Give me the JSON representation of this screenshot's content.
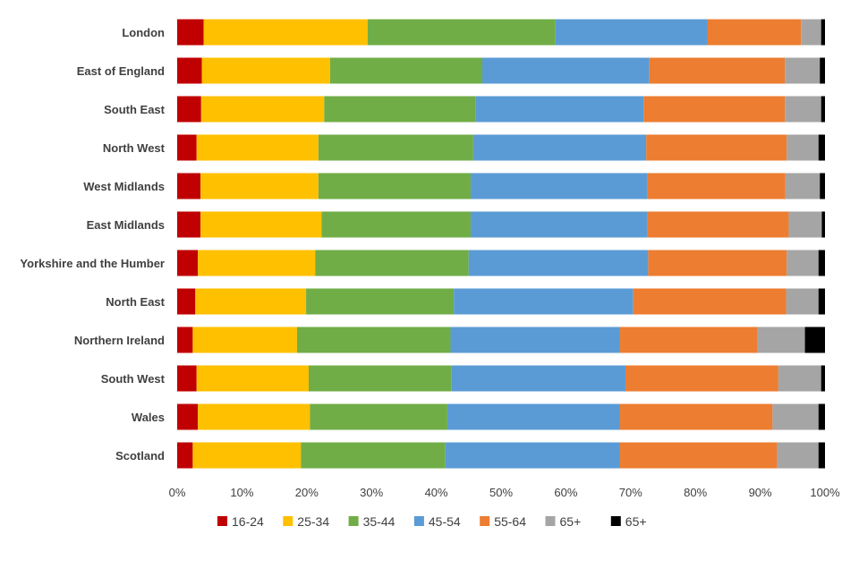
{
  "chart_data": {
    "type": "bar",
    "orientation": "horizontal",
    "stacked": "percent",
    "title": "",
    "xlabel": "",
    "ylabel": "",
    "xlim": [
      0,
      100
    ],
    "x_ticks": [
      "0%",
      "10%",
      "20%",
      "30%",
      "40%",
      "50%",
      "60%",
      "70%",
      "80%",
      "90%",
      "100%"
    ],
    "grid": false,
    "legend_position": "bottom",
    "categories": [
      "London",
      "East of England",
      "South East",
      "North West",
      "West Midlands",
      "East Midlands",
      "Yorkshire and the Humber",
      "North East",
      "Northern Ireland",
      "South West",
      "Wales",
      "Scotland"
    ],
    "series": [
      {
        "name": "16-24",
        "color": "#c00000",
        "values": [
          4.1,
          3.8,
          3.7,
          3.0,
          3.6,
          3.6,
          3.2,
          2.8,
          2.4,
          3.0,
          3.2,
          2.4
        ]
      },
      {
        "name": "25-34",
        "color": "#ffc000",
        "values": [
          25.3,
          19.8,
          19.0,
          18.8,
          18.2,
          18.7,
          18.1,
          17.1,
          16.1,
          17.3,
          17.3,
          16.7
        ]
      },
      {
        "name": "35-44",
        "color": "#70ad47",
        "values": [
          29.0,
          23.5,
          23.4,
          23.9,
          23.5,
          23.0,
          23.7,
          22.8,
          23.7,
          22.0,
          21.2,
          22.3
        ]
      },
      {
        "name": "45-54",
        "color": "#5b9bd5",
        "values": [
          23.5,
          25.8,
          25.9,
          26.7,
          27.3,
          27.3,
          27.7,
          27.7,
          26.1,
          26.9,
          26.6,
          26.9
        ]
      },
      {
        "name": "55-64",
        "color": "#ed7d31",
        "values": [
          14.4,
          20.9,
          21.8,
          21.7,
          21.3,
          21.8,
          21.4,
          23.6,
          21.3,
          23.6,
          23.6,
          24.3
        ]
      },
      {
        "name": "65+",
        "color": "#a5a5a5",
        "values": [
          3.1,
          5.4,
          5.6,
          4.9,
          5.3,
          5.1,
          4.9,
          5.0,
          7.3,
          6.6,
          7.1,
          6.4
        ]
      },
      {
        "name": "65+",
        "color": "#000000",
        "values": [
          0.6,
          0.8,
          0.6,
          1.0,
          0.8,
          0.5,
          1.0,
          1.0,
          3.1,
          0.6,
          1.0,
          1.0
        ]
      }
    ]
  }
}
